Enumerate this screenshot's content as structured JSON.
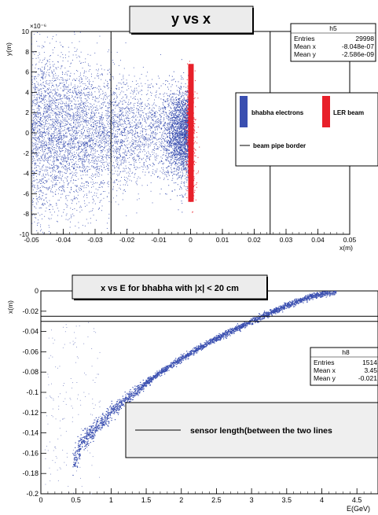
{
  "chart_data": [
    {
      "type": "scatter",
      "title": "y vs x",
      "xlabel": "x(m)",
      "ylabel": "y(m)",
      "y_exponent": "×10⁻⁶",
      "xlim": [
        -0.05,
        0.05
      ],
      "ylim": [
        -10,
        10
      ],
      "xticks": [
        "-0.05",
        "-0.04",
        "-0.03",
        "-0.02",
        "-0.01",
        "0",
        "0.01",
        "0.02",
        "0.03",
        "0.04",
        "0.05"
      ],
      "yticks": [
        "-10",
        "-8",
        "-6",
        "-4",
        "-2",
        "0",
        "2",
        "4",
        "6",
        "8",
        "10"
      ],
      "vertical_lines": [
        -0.025,
        0.025
      ],
      "stats": {
        "name": "h5",
        "rows": [
          {
            "label": "Entries",
            "value": "29998"
          },
          {
            "label": "Mean x",
            "value": "-8.048e-07"
          },
          {
            "label": "Mean y",
            "value": "-2.586e-09"
          }
        ]
      },
      "legend": {
        "entries": [
          {
            "label": "bhabha electrons",
            "color": "#3a4fb0"
          },
          {
            "label": "LER beam",
            "color": "#e8202a"
          },
          {
            "label": "beam pipe border",
            "color": "#000000"
          }
        ]
      },
      "series": [
        {
          "name": "bhabha electrons",
          "color": "#3a4fb0",
          "x_range": [
            -0.05,
            0.0
          ],
          "y_range": [
            -7,
            7
          ]
        },
        {
          "name": "LER beam",
          "color": "#e8202a",
          "x": 0.0,
          "y_range": [
            -8,
            8
          ]
        }
      ]
    },
    {
      "type": "scatter",
      "title": "x vs E for bhabha with |x| < 20 cm",
      "xlabel": "E(GeV)",
      "ylabel": "x(m)",
      "xlim": [
        0,
        4.8
      ],
      "ylim": [
        -0.2,
        0
      ],
      "xticks": [
        "0",
        "0.5",
        "1",
        "1.5",
        "2",
        "2.5",
        "3",
        "3.5",
        "4",
        "4.5"
      ],
      "yticks": [
        "-0.2",
        "-0.18",
        "-0.16",
        "-0.14",
        "-0.12",
        "-0.1",
        "-0.08",
        "-0.06",
        "-0.04",
        "-0.02",
        "0"
      ],
      "horizontal_lines": [
        -0.025,
        -0.03
      ],
      "stats": {
        "name": "h8",
        "rows": [
          {
            "label": "Entries",
            "value": "1514"
          },
          {
            "label": "Mean x",
            "value": "3.45"
          },
          {
            "label": "Mean y",
            "value": "-0.021"
          }
        ]
      },
      "legend": {
        "entries": [
          {
            "label": "sensor length(between the two lines",
            "color": "#000000"
          }
        ]
      },
      "series": [
        {
          "name": "bhabha",
          "color": "#3a4fb0",
          "x": [
            0.45,
            0.5,
            0.6,
            0.7,
            0.8,
            1.0,
            1.2,
            1.4,
            1.6,
            1.8,
            2.0,
            2.2,
            2.4,
            2.6,
            2.8,
            3.0,
            3.2,
            3.4,
            3.6,
            3.8,
            4.0,
            4.2
          ],
          "y": [
            -0.172,
            -0.16,
            -0.148,
            -0.14,
            -0.133,
            -0.119,
            -0.107,
            -0.096,
            -0.085,
            -0.075,
            -0.066,
            -0.058,
            -0.05,
            -0.043,
            -0.036,
            -0.03,
            -0.023,
            -0.017,
            -0.011,
            -0.006,
            -0.002,
            0.0
          ]
        }
      ]
    }
  ]
}
